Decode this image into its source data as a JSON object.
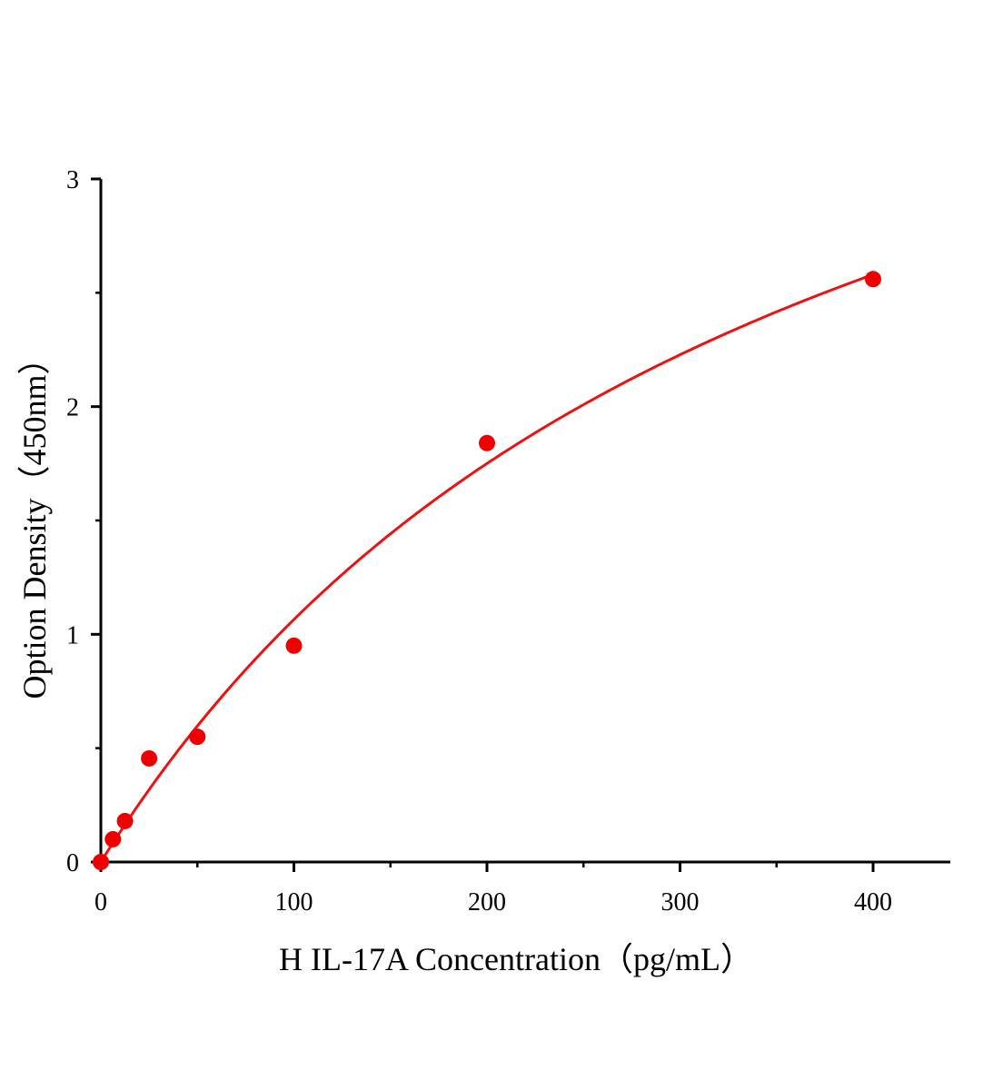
{
  "chart_data": {
    "type": "scatter",
    "title": "",
    "xlabel": "H IL-17A Concentration（pg/mL）",
    "ylabel": "Option Density（450nm）",
    "xlim": [
      0,
      440
    ],
    "ylim": [
      0,
      3
    ],
    "x_ticks": [
      0,
      100,
      200,
      300,
      400
    ],
    "x_tick_labels": [
      "0",
      "100",
      "200",
      "300",
      "400"
    ],
    "x_minor_ticks": [
      50,
      150,
      250,
      350
    ],
    "y_ticks": [
      0,
      1,
      2,
      3
    ],
    "y_tick_labels": [
      "0",
      "1",
      "2",
      "3"
    ],
    "y_minor_ticks": [
      0.5,
      1.5,
      2.5
    ],
    "grid": false,
    "points": {
      "x": [
        0,
        6.25,
        12.5,
        25,
        50,
        100,
        200,
        400
      ],
      "y": [
        0.0,
        0.1,
        0.18,
        0.455,
        0.55,
        0.95,
        1.84,
        2.56
      ]
    },
    "fit_curve": {
      "x_range": [
        0,
        400
      ]
    },
    "colors": {
      "points": "#ee0000",
      "curve": "#ee1111",
      "axes": "#000000"
    }
  }
}
